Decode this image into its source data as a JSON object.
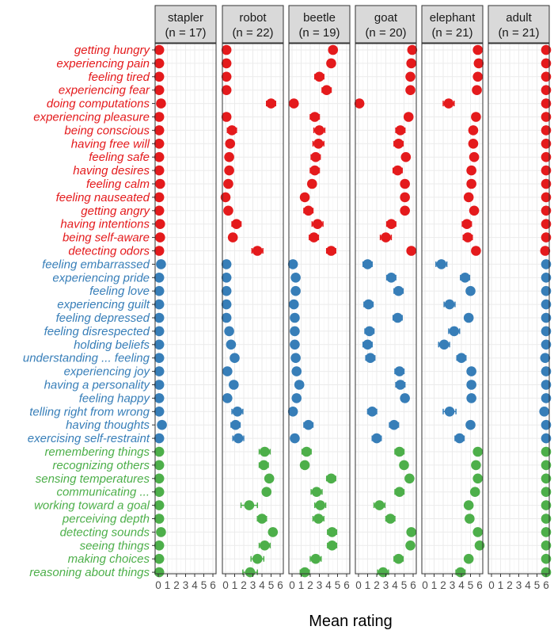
{
  "chart_data": {
    "type": "scatter",
    "xlabel": "Mean rating",
    "xlim": [
      0,
      6
    ],
    "xticks": [
      "0",
      "1",
      "2",
      "3",
      "4",
      "5",
      "6"
    ],
    "grid": true,
    "colors": {
      "red": "#e41a1c",
      "blue": "#377eb8",
      "green": "#4daf4a"
    },
    "panels": [
      {
        "name": "stapler",
        "n_label": "(n = 17)"
      },
      {
        "name": "robot",
        "n_label": "(n = 22)"
      },
      {
        "name": "beetle",
        "n_label": "(n = 19)"
      },
      {
        "name": "goat",
        "n_label": "(n = 20)"
      },
      {
        "name": "elephant",
        "n_label": "(n = 21)"
      },
      {
        "name": "adult",
        "n_label": "(n = 21)"
      }
    ],
    "items": [
      {
        "label": "getting hungry",
        "group": "red",
        "values": [
          0.1,
          0.1,
          4.5,
          5.9,
          5.8,
          6.0
        ],
        "err": [
          0.15,
          0.05,
          0.4,
          0.2,
          0.2,
          0.1
        ]
      },
      {
        "label": "experiencing pain",
        "group": "red",
        "values": [
          0.1,
          0.1,
          4.3,
          5.8,
          5.9,
          6.0
        ],
        "err": [
          0.15,
          0.05,
          0.4,
          0.2,
          0.2,
          0.1
        ]
      },
      {
        "label": "feeling tired",
        "group": "red",
        "values": [
          0.1,
          0.1,
          3.0,
          5.7,
          5.8,
          6.0
        ],
        "err": [
          0.15,
          0.05,
          0.5,
          0.2,
          0.2,
          0.1
        ]
      },
      {
        "label": "experiencing fear",
        "group": "red",
        "values": [
          0.1,
          0.1,
          3.8,
          5.7,
          5.7,
          6.0
        ],
        "err": [
          0.15,
          0.05,
          0.5,
          0.2,
          0.2,
          0.1
        ]
      },
      {
        "label": "doing computations",
        "group": "red",
        "values": [
          0.3,
          5.0,
          0.2,
          0.1,
          2.6,
          6.0
        ],
        "err": [
          0.4,
          0.5,
          0.3,
          0.05,
          0.6,
          0.1
        ]
      },
      {
        "label": "experiencing pleasure",
        "group": "red",
        "values": [
          0.1,
          0.1,
          2.5,
          5.5,
          5.6,
          6.0
        ],
        "err": [
          0.1,
          0.05,
          0.5,
          0.2,
          0.2,
          0.1
        ]
      },
      {
        "label": "being conscious",
        "group": "red",
        "values": [
          0.1,
          0.7,
          3.0,
          4.6,
          5.3,
          6.0
        ],
        "err": [
          0.1,
          0.5,
          0.6,
          0.5,
          0.4,
          0.1
        ]
      },
      {
        "label": "having free will",
        "group": "red",
        "values": [
          0.1,
          0.5,
          2.9,
          4.4,
          5.3,
          6.0
        ],
        "err": [
          0.1,
          0.4,
          0.6,
          0.5,
          0.4,
          0.1
        ]
      },
      {
        "label": "feeling safe",
        "group": "red",
        "values": [
          0.1,
          0.4,
          2.6,
          5.2,
          5.4,
          6.0
        ],
        "err": [
          0.1,
          0.3,
          0.5,
          0.3,
          0.3,
          0.1
        ]
      },
      {
        "label": "having desires",
        "group": "red",
        "values": [
          0.1,
          0.4,
          2.5,
          4.3,
          5.1,
          6.0
        ],
        "err": [
          0.1,
          0.3,
          0.5,
          0.5,
          0.4,
          0.1
        ]
      },
      {
        "label": "feeling calm",
        "group": "red",
        "values": [
          0.2,
          0.3,
          2.2,
          5.1,
          5.1,
          6.0
        ],
        "err": [
          0.2,
          0.2,
          0.4,
          0.4,
          0.4,
          0.1
        ]
      },
      {
        "label": "feeling nauseated",
        "group": "red",
        "values": [
          0.1,
          0.0,
          1.4,
          5.1,
          4.8,
          6.0
        ],
        "err": [
          0.1,
          0.05,
          0.4,
          0.4,
          0.4,
          0.1
        ]
      },
      {
        "label": "getting angry",
        "group": "red",
        "values": [
          0.1,
          0.3,
          1.8,
          5.1,
          5.4,
          6.0
        ],
        "err": [
          0.1,
          0.2,
          0.5,
          0.4,
          0.3,
          0.1
        ]
      },
      {
        "label": "having intentions",
        "group": "red",
        "values": [
          0.2,
          1.2,
          2.8,
          3.6,
          4.6,
          6.0
        ],
        "err": [
          0.2,
          0.5,
          0.6,
          0.5,
          0.5,
          0.1
        ]
      },
      {
        "label": "being self-aware",
        "group": "red",
        "values": [
          0.2,
          0.8,
          2.4,
          3.0,
          4.7,
          6.0
        ],
        "err": [
          0.2,
          0.4,
          0.5,
          0.6,
          0.5,
          0.1
        ]
      },
      {
        "label": "detecting odors",
        "group": "red",
        "values": [
          0.1,
          3.5,
          4.3,
          5.8,
          5.6,
          5.9
        ],
        "err": [
          0.1,
          0.6,
          0.5,
          0.3,
          0.3,
          0.3
        ]
      },
      {
        "label": "feeling embarrassed",
        "group": "blue",
        "values": [
          0.3,
          0.1,
          0.1,
          1.0,
          1.8,
          6.0
        ],
        "err": [
          0.4,
          0.05,
          0.05,
          0.5,
          0.6,
          0.1
        ]
      },
      {
        "label": "experiencing pride",
        "group": "blue",
        "values": [
          0.1,
          0.1,
          0.4,
          3.6,
          4.4,
          6.0
        ],
        "err": [
          0.1,
          0.05,
          0.2,
          0.5,
          0.5,
          0.1
        ]
      },
      {
        "label": "feeling love",
        "group": "blue",
        "values": [
          0.1,
          0.1,
          0.4,
          4.4,
          5.0,
          6.0
        ],
        "err": [
          0.1,
          0.05,
          0.2,
          0.5,
          0.4,
          0.1
        ]
      },
      {
        "label": "experiencing guilt",
        "group": "blue",
        "values": [
          0.1,
          0.1,
          0.2,
          1.1,
          2.7,
          6.0
        ],
        "err": [
          0.1,
          0.05,
          0.1,
          0.5,
          0.6,
          0.1
        ]
      },
      {
        "label": "feeling depressed",
        "group": "blue",
        "values": [
          0.1,
          0.1,
          0.3,
          4.3,
          4.8,
          6.0
        ],
        "err": [
          0.1,
          0.05,
          0.2,
          0.5,
          0.4,
          0.1
        ]
      },
      {
        "label": "feeling disrespected",
        "group": "blue",
        "values": [
          0.1,
          0.4,
          0.3,
          1.2,
          3.2,
          6.0
        ],
        "err": [
          0.1,
          0.3,
          0.2,
          0.5,
          0.6,
          0.1
        ]
      },
      {
        "label": "holding beliefs",
        "group": "blue",
        "values": [
          0.1,
          0.6,
          0.3,
          1.0,
          2.1,
          6.0
        ],
        "err": [
          0.1,
          0.4,
          0.2,
          0.5,
          0.6,
          0.1
        ]
      },
      {
        "label": "understanding ... feeling",
        "group": "blue",
        "values": [
          0.1,
          1.0,
          0.4,
          1.3,
          4.0,
          5.9
        ],
        "err": [
          0.1,
          0.4,
          0.3,
          0.5,
          0.5,
          0.3
        ]
      },
      {
        "label": "experiencing joy",
        "group": "blue",
        "values": [
          0.1,
          0.2,
          0.5,
          4.5,
          5.1,
          6.0
        ],
        "err": [
          0.1,
          0.1,
          0.3,
          0.5,
          0.4,
          0.1
        ]
      },
      {
        "label": "having a personality",
        "group": "blue",
        "values": [
          0.1,
          0.9,
          0.8,
          4.6,
          5.1,
          6.0
        ],
        "err": [
          0.1,
          0.4,
          0.4,
          0.5,
          0.4,
          0.1
        ]
      },
      {
        "label": "feeling happy",
        "group": "blue",
        "values": [
          0.1,
          0.2,
          0.5,
          5.1,
          5.1,
          6.0
        ],
        "err": [
          0.1,
          0.1,
          0.3,
          0.3,
          0.3,
          0.1
        ]
      },
      {
        "label": "telling right from wrong",
        "group": "blue",
        "values": [
          0.1,
          1.3,
          0.1,
          1.5,
          2.7,
          5.8
        ],
        "err": [
          0.1,
          0.6,
          0.2,
          0.5,
          0.7,
          0.3
        ]
      },
      {
        "label": "having thoughts",
        "group": "blue",
        "values": [
          0.4,
          1.1,
          1.8,
          3.9,
          5.0,
          6.0
        ],
        "err": [
          0.4,
          0.5,
          0.5,
          0.5,
          0.4,
          0.1
        ]
      },
      {
        "label": "exercising self-restraint",
        "group": "blue",
        "values": [
          0.1,
          1.4,
          0.3,
          2.0,
          3.8,
          6.0
        ],
        "err": [
          0.1,
          0.6,
          0.2,
          0.5,
          0.5,
          0.1
        ]
      },
      {
        "label": "remembering things",
        "group": "green",
        "values": [
          0.1,
          4.3,
          1.6,
          4.5,
          5.8,
          6.0
        ],
        "err": [
          0.1,
          0.6,
          0.5,
          0.5,
          0.3,
          0.1
        ]
      },
      {
        "label": "recognizing others",
        "group": "green",
        "values": [
          0.1,
          4.2,
          1.4,
          5.0,
          5.6,
          6.0
        ],
        "err": [
          0.1,
          0.5,
          0.4,
          0.4,
          0.3,
          0.1
        ]
      },
      {
        "label": "sensing temperatures",
        "group": "green",
        "values": [
          0.1,
          4.8,
          4.3,
          5.6,
          5.8,
          6.0
        ],
        "err": [
          0.1,
          0.4,
          0.5,
          0.3,
          0.3,
          0.1
        ]
      },
      {
        "label": "communicating ...",
        "group": "green",
        "values": [
          0.1,
          4.5,
          2.7,
          4.5,
          5.5,
          6.0
        ],
        "err": [
          0.1,
          0.4,
          0.6,
          0.5,
          0.3,
          0.1
        ]
      },
      {
        "label": "working toward a goal",
        "group": "green",
        "values": [
          0.1,
          2.6,
          3.1,
          2.3,
          4.8,
          6.0
        ],
        "err": [
          0.1,
          0.9,
          0.6,
          0.6,
          0.4,
          0.1
        ]
      },
      {
        "label": "perceiving depth",
        "group": "green",
        "values": [
          0.1,
          4.0,
          2.9,
          3.5,
          4.9,
          6.0
        ],
        "err": [
          0.1,
          0.5,
          0.6,
          0.5,
          0.4,
          0.1
        ]
      },
      {
        "label": "detecting sounds",
        "group": "green",
        "values": [
          0.3,
          5.2,
          4.4,
          5.8,
          5.8,
          6.0
        ],
        "err": [
          0.3,
          0.3,
          0.5,
          0.2,
          0.2,
          0.1
        ]
      },
      {
        "label": "seeing things",
        "group": "green",
        "values": [
          0.1,
          4.3,
          4.4,
          5.7,
          6.0,
          6.0
        ],
        "err": [
          0.1,
          0.6,
          0.5,
          0.3,
          0.1,
          0.1
        ]
      },
      {
        "label": "making choices",
        "group": "green",
        "values": [
          0.1,
          3.5,
          2.6,
          4.4,
          4.8,
          6.0
        ],
        "err": [
          0.1,
          0.7,
          0.6,
          0.5,
          0.4,
          0.1
        ]
      },
      {
        "label": "reasoning about things",
        "group": "green",
        "values": [
          0.1,
          2.7,
          1.4,
          2.7,
          3.9,
          6.0
        ],
        "err": [
          0.1,
          0.8,
          0.5,
          0.6,
          0.5,
          0.1
        ]
      }
    ]
  }
}
